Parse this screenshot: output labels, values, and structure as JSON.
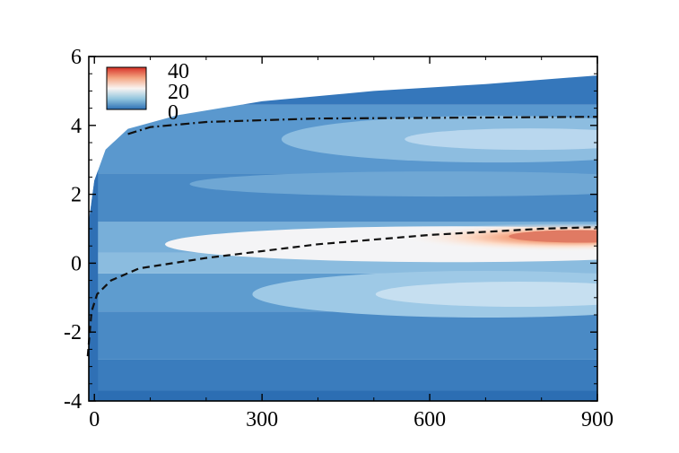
{
  "chart_data": {
    "type": "heatmap",
    "title": "",
    "xlabel": "",
    "ylabel": "",
    "xlim": [
      -10,
      900
    ],
    "ylim": [
      -4,
      6
    ],
    "x_ticks": [
      "0",
      "300",
      "600",
      "900"
    ],
    "x_tick_values": [
      0,
      300,
      600,
      900
    ],
    "y_ticks": [
      "-4",
      "-2",
      "0",
      "2",
      "4",
      "6"
    ],
    "y_tick_values": [
      -4,
      -2,
      0,
      2,
      4,
      6
    ],
    "colorbar": {
      "labels": [
        "40",
        "20",
        "0"
      ],
      "values": [
        40,
        20,
        0
      ],
      "placement": "top-left",
      "colors": [
        "#d73027",
        "#f9f4f2",
        "#2c6eb3"
      ]
    },
    "field": {
      "x_start": -10,
      "outer_edge": [
        [
          -10,
          1.2
        ],
        [
          0,
          2.4
        ],
        [
          20,
          3.3
        ],
        [
          60,
          3.9
        ],
        [
          150,
          4.3
        ],
        [
          300,
          4.7
        ],
        [
          500,
          5.0
        ],
        [
          700,
          5.2
        ],
        [
          900,
          5.45
        ]
      ],
      "bottom": -4,
      "peak": {
        "x": 850,
        "y": 0.75,
        "value": 40
      }
    },
    "lines": [
      {
        "style": "dash-dot",
        "points": [
          [
            60,
            3.75
          ],
          [
            100,
            3.95
          ],
          [
            200,
            4.1
          ],
          [
            400,
            4.2
          ],
          [
            600,
            4.22
          ],
          [
            900,
            4.25
          ]
        ]
      },
      {
        "style": "dashed",
        "points": [
          [
            -12,
            -2.7
          ],
          [
            -5,
            -1.4
          ],
          [
            5,
            -0.9
          ],
          [
            30,
            -0.5
          ],
          [
            80,
            -0.15
          ],
          [
            200,
            0.15
          ],
          [
            400,
            0.55
          ],
          [
            600,
            0.82
          ],
          [
            800,
            1.0
          ],
          [
            900,
            1.05
          ]
        ]
      }
    ]
  }
}
